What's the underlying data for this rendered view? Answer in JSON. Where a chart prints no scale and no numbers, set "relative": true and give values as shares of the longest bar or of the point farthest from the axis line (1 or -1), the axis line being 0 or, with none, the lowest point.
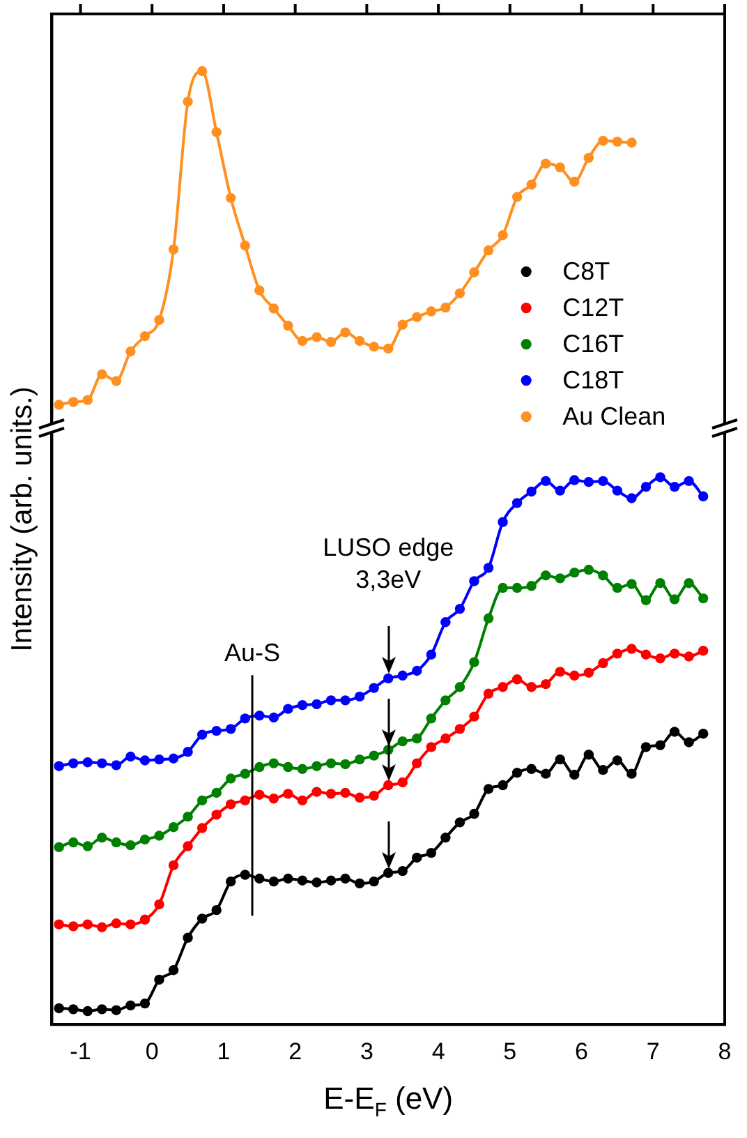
{
  "chart_data": {
    "type": "line",
    "xlabel": "E-E$_{F}$ (eV)",
    "ylabel": "Intensity (arb. units.)",
    "relative": true,
    "marker": "circle",
    "legend": "right",
    "tick_labels": "x",
    "xlim": [
      -1.4,
      8
    ],
    "xticks": [
      -1,
      0,
      1,
      2,
      3,
      4,
      5,
      6,
      7,
      8
    ],
    "x": [
      -1.3,
      -1.1,
      -0.9,
      -0.7,
      -0.5,
      -0.3,
      -0.1,
      0.1,
      0.3,
      0.5,
      0.7,
      0.9,
      1.1,
      1.3,
      1.5,
      1.7,
      1.9,
      2.1,
      2.3,
      2.5,
      2.7,
      2.9,
      3.1,
      3.3,
      3.5,
      3.7,
      3.9,
      4.1,
      4.3,
      4.5,
      4.7,
      4.9,
      5.1,
      5.3,
      5.5,
      5.7,
      5.9,
      6.1,
      6.3,
      6.5,
      6.7,
      6.9,
      7.1,
      7.3,
      7.5,
      7.7
    ],
    "series": [
      {
        "name": "C8T",
        "color": "#000000",
        "values": [
          0.017,
          0.016,
          0.014,
          0.016,
          0.015,
          0.02,
          0.022,
          0.047,
          0.057,
          0.091,
          0.111,
          0.12,
          0.15,
          0.157,
          0.153,
          0.15,
          0.153,
          0.151,
          0.149,
          0.151,
          0.153,
          0.148,
          0.15,
          0.159,
          0.161,
          0.175,
          0.18,
          0.196,
          0.212,
          0.221,
          0.247,
          0.251,
          0.264,
          0.268,
          0.263,
          0.278,
          0.262,
          0.283,
          0.267,
          0.277,
          0.263,
          0.291,
          0.293,
          0.307,
          0.296,
          0.305
        ]
      },
      {
        "name": "C12T",
        "color": "#ff0000",
        "values": [
          0.105,
          0.103,
          0.105,
          0.102,
          0.106,
          0.105,
          0.11,
          0.126,
          0.167,
          0.187,
          0.206,
          0.22,
          0.231,
          0.235,
          0.241,
          0.237,
          0.242,
          0.235,
          0.244,
          0.242,
          0.243,
          0.238,
          0.24,
          0.251,
          0.254,
          0.274,
          0.291,
          0.3,
          0.31,
          0.323,
          0.347,
          0.354,
          0.362,
          0.354,
          0.357,
          0.37,
          0.366,
          0.369,
          0.379,
          0.389,
          0.394,
          0.388,
          0.384,
          0.389,
          0.386,
          0.392
        ]
      },
      {
        "name": "C16T",
        "color": "#008000",
        "values": [
          0.186,
          0.191,
          0.187,
          0.196,
          0.191,
          0.188,
          0.194,
          0.198,
          0.207,
          0.218,
          0.235,
          0.243,
          0.258,
          0.263,
          0.27,
          0.274,
          0.27,
          0.268,
          0.271,
          0.274,
          0.273,
          0.278,
          0.282,
          0.288,
          0.297,
          0.3,
          0.321,
          0.34,
          0.354,
          0.38,
          0.426,
          0.458,
          0.458,
          0.46,
          0.471,
          0.468,
          0.474,
          0.477,
          0.471,
          0.458,
          0.462,
          0.445,
          0.463,
          0.446,
          0.463,
          0.447
        ]
      },
      {
        "name": "C18T",
        "color": "#0000ff",
        "values": [
          0.271,
          0.274,
          0.275,
          0.274,
          0.272,
          0.281,
          0.277,
          0.278,
          0.279,
          0.286,
          0.304,
          0.308,
          0.31,
          0.321,
          0.324,
          0.322,
          0.331,
          0.335,
          0.336,
          0.34,
          0.34,
          0.344,
          0.353,
          0.363,
          0.366,
          0.371,
          0.388,
          0.422,
          0.436,
          0.465,
          0.479,
          0.527,
          0.547,
          0.559,
          0.57,
          0.56,
          0.571,
          0.569,
          0.57,
          0.56,
          0.552,
          0.564,
          0.574,
          0.564,
          0.57,
          0.554
        ]
      },
      {
        "name": "Au Clean",
        "color": "#ff8f1f",
        "x": [
          -1.3,
          -1.1,
          -0.9,
          -0.7,
          -0.5,
          -0.3,
          -0.1,
          0.1,
          0.3,
          0.5,
          0.7,
          0.9,
          1.1,
          1.3,
          1.5,
          1.7,
          1.9,
          2.1,
          2.3,
          2.5,
          2.7,
          2.9,
          3.1,
          3.3,
          3.5,
          3.7,
          3.9,
          4.1,
          4.3,
          4.5,
          4.7,
          4.9,
          5.1,
          5.3,
          5.5,
          5.7,
          5.9,
          6.1,
          6.3,
          6.5,
          6.7
        ],
        "values": [
          0.65,
          0.653,
          0.655,
          0.682,
          0.675,
          0.706,
          0.722,
          0.739,
          0.813,
          0.968,
          1.0,
          0.936,
          0.867,
          0.817,
          0.77,
          0.751,
          0.733,
          0.717,
          0.721,
          0.716,
          0.726,
          0.717,
          0.711,
          0.709,
          0.734,
          0.742,
          0.748,
          0.752,
          0.767,
          0.789,
          0.812,
          0.828,
          0.868,
          0.881,
          0.903,
          0.899,
          0.884,
          0.909,
          0.927,
          0.926,
          0.925
        ]
      }
    ],
    "ref_lines": [
      {
        "axis": "x",
        "value": 1.4,
        "label": "Au-S"
      },
      {
        "axis": "x",
        "value": 3.3,
        "label": "LUSO edge\n3,3eV"
      }
    ]
  }
}
